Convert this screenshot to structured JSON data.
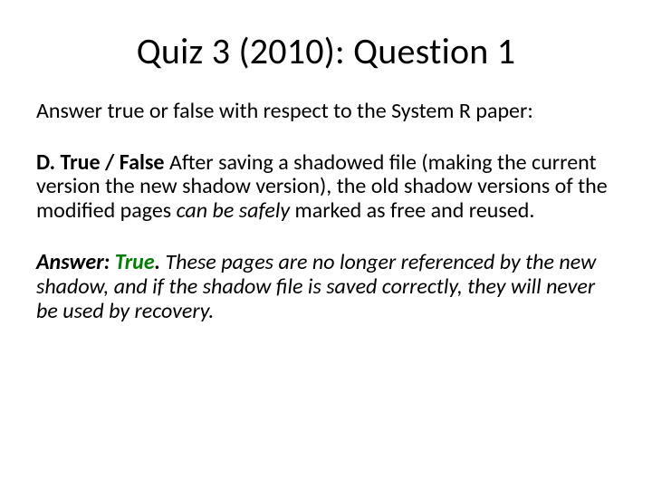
{
  "colors": {
    "background": "#ffffff",
    "text": "#000000",
    "answer_highlight": "#008000"
  },
  "typography": {
    "title_fontsize": 40,
    "body_fontsize": 24,
    "font_family": "Calibri"
  },
  "title": "Quiz 3 (2010): Question 1",
  "intro": "Answer true or false with respect to the System R paper:",
  "question": {
    "label": "D. True / False",
    "text_before_italic": " After saving a shadowed file (making the current version the new shadow version), the old shadow versions of the modified pages ",
    "italic_phrase": "can be safely",
    "text_after_italic": " marked as free and reused."
  },
  "answer": {
    "prefix": "Answer: ",
    "verdict": "True",
    "period": ".",
    "explanation": " These pages are no longer referenced by the new shadow, and if the shadow file is saved correctly, they will never be used by recovery."
  }
}
